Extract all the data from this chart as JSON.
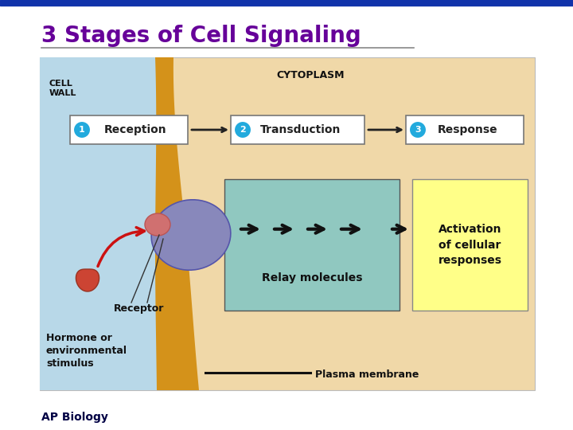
{
  "title": "3 Stages of Cell Signaling",
  "subtitle": "AP Biology",
  "bg_color": "#FFFFFF",
  "title_color": "#660099",
  "diagram_bg": "#F0D8A8",
  "outer_cell_bg": "#B8D8E8",
  "cell_wall_strip_color": "#D4921A",
  "relay_box_color": "#90C8C0",
  "activation_box_color": "#FFFF88",
  "circle_color": "#22AADD",
  "arrow_color": "#222222",
  "red_arrow_color": "#CC1111",
  "hormone_color": "#CC4433",
  "receptor_ball_color": "#8888BB",
  "receptor_knob_color": "#D07070",
  "top_bar_color": "#1133AA",
  "line_color": "#AAAAAA",
  "labels": {
    "cell_wall": "CELL\nWALL",
    "cytoplasm": "CYTOPLASM",
    "stage1": "Reception",
    "stage2": "Transduction",
    "stage3": "Response",
    "relay": "Relay molecules",
    "activation": "Activation\nof cellular\nresponses",
    "receptor": "Receptor",
    "hormone": "Hormone or\nenvironmental\nstimulus",
    "plasma": "Plasma membrane"
  }
}
